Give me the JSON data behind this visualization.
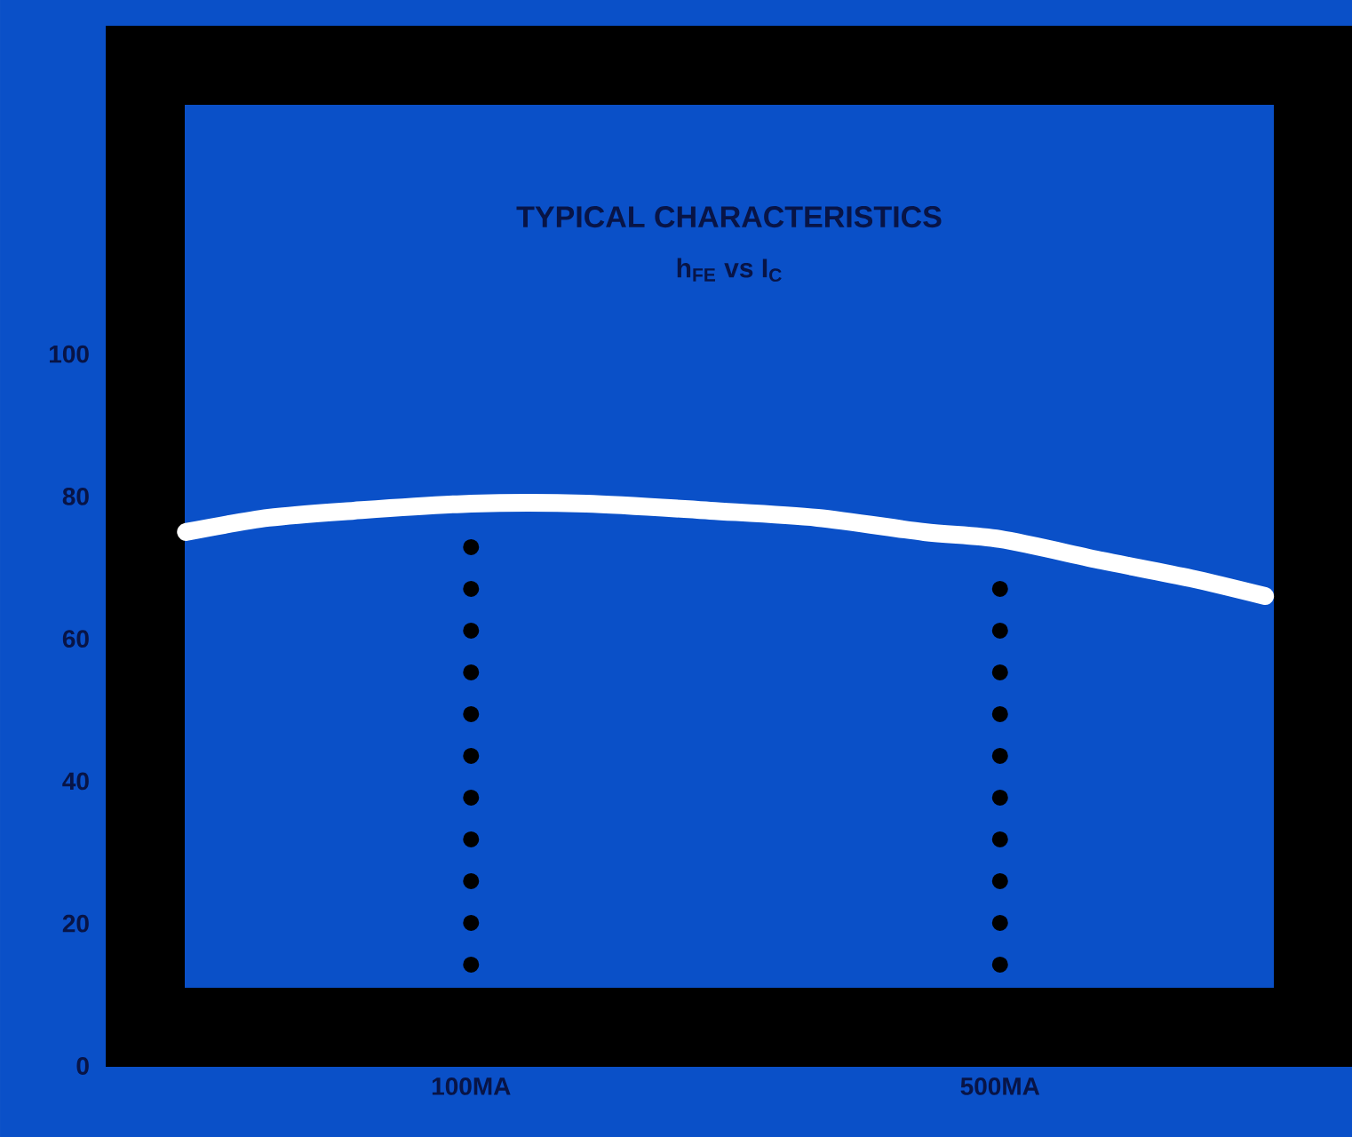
{
  "chart_data": {
    "type": "line",
    "title": "TYPICAL CHARACTERISTICS",
    "subtitle": "h$_{FE}$ vs I$_{C}$",
    "x": [
      42,
      54,
      70,
      100,
      142,
      207,
      287,
      397,
      500,
      681,
      893,
      1120
    ],
    "series": [
      {
        "color": "#ffffff",
        "values": [
          75,
          77,
          78,
          79,
          79,
          78,
          77,
          75,
          74,
          71,
          68.5,
          66
        ]
      }
    ],
    "xlim": [
      33,
      1459
    ],
    "ylim": [
      0,
      146
    ],
    "log": "x",
    "xticks": [
      {
        "value": 100,
        "label": "100MA"
      },
      {
        "value": 500,
        "label": "500MA"
      }
    ],
    "yticks": [
      0,
      20,
      40,
      60,
      80,
      100
    ],
    "ref_lines": [
      {
        "axis": "x",
        "value": 100,
        "color": "#000000",
        "line_style": "dotted"
      },
      {
        "axis": "x",
        "value": 500,
        "color": "#000000",
        "line_style": "dotted"
      }
    ],
    "marker": "none",
    "line_style": "solid",
    "grid": false
  }
}
